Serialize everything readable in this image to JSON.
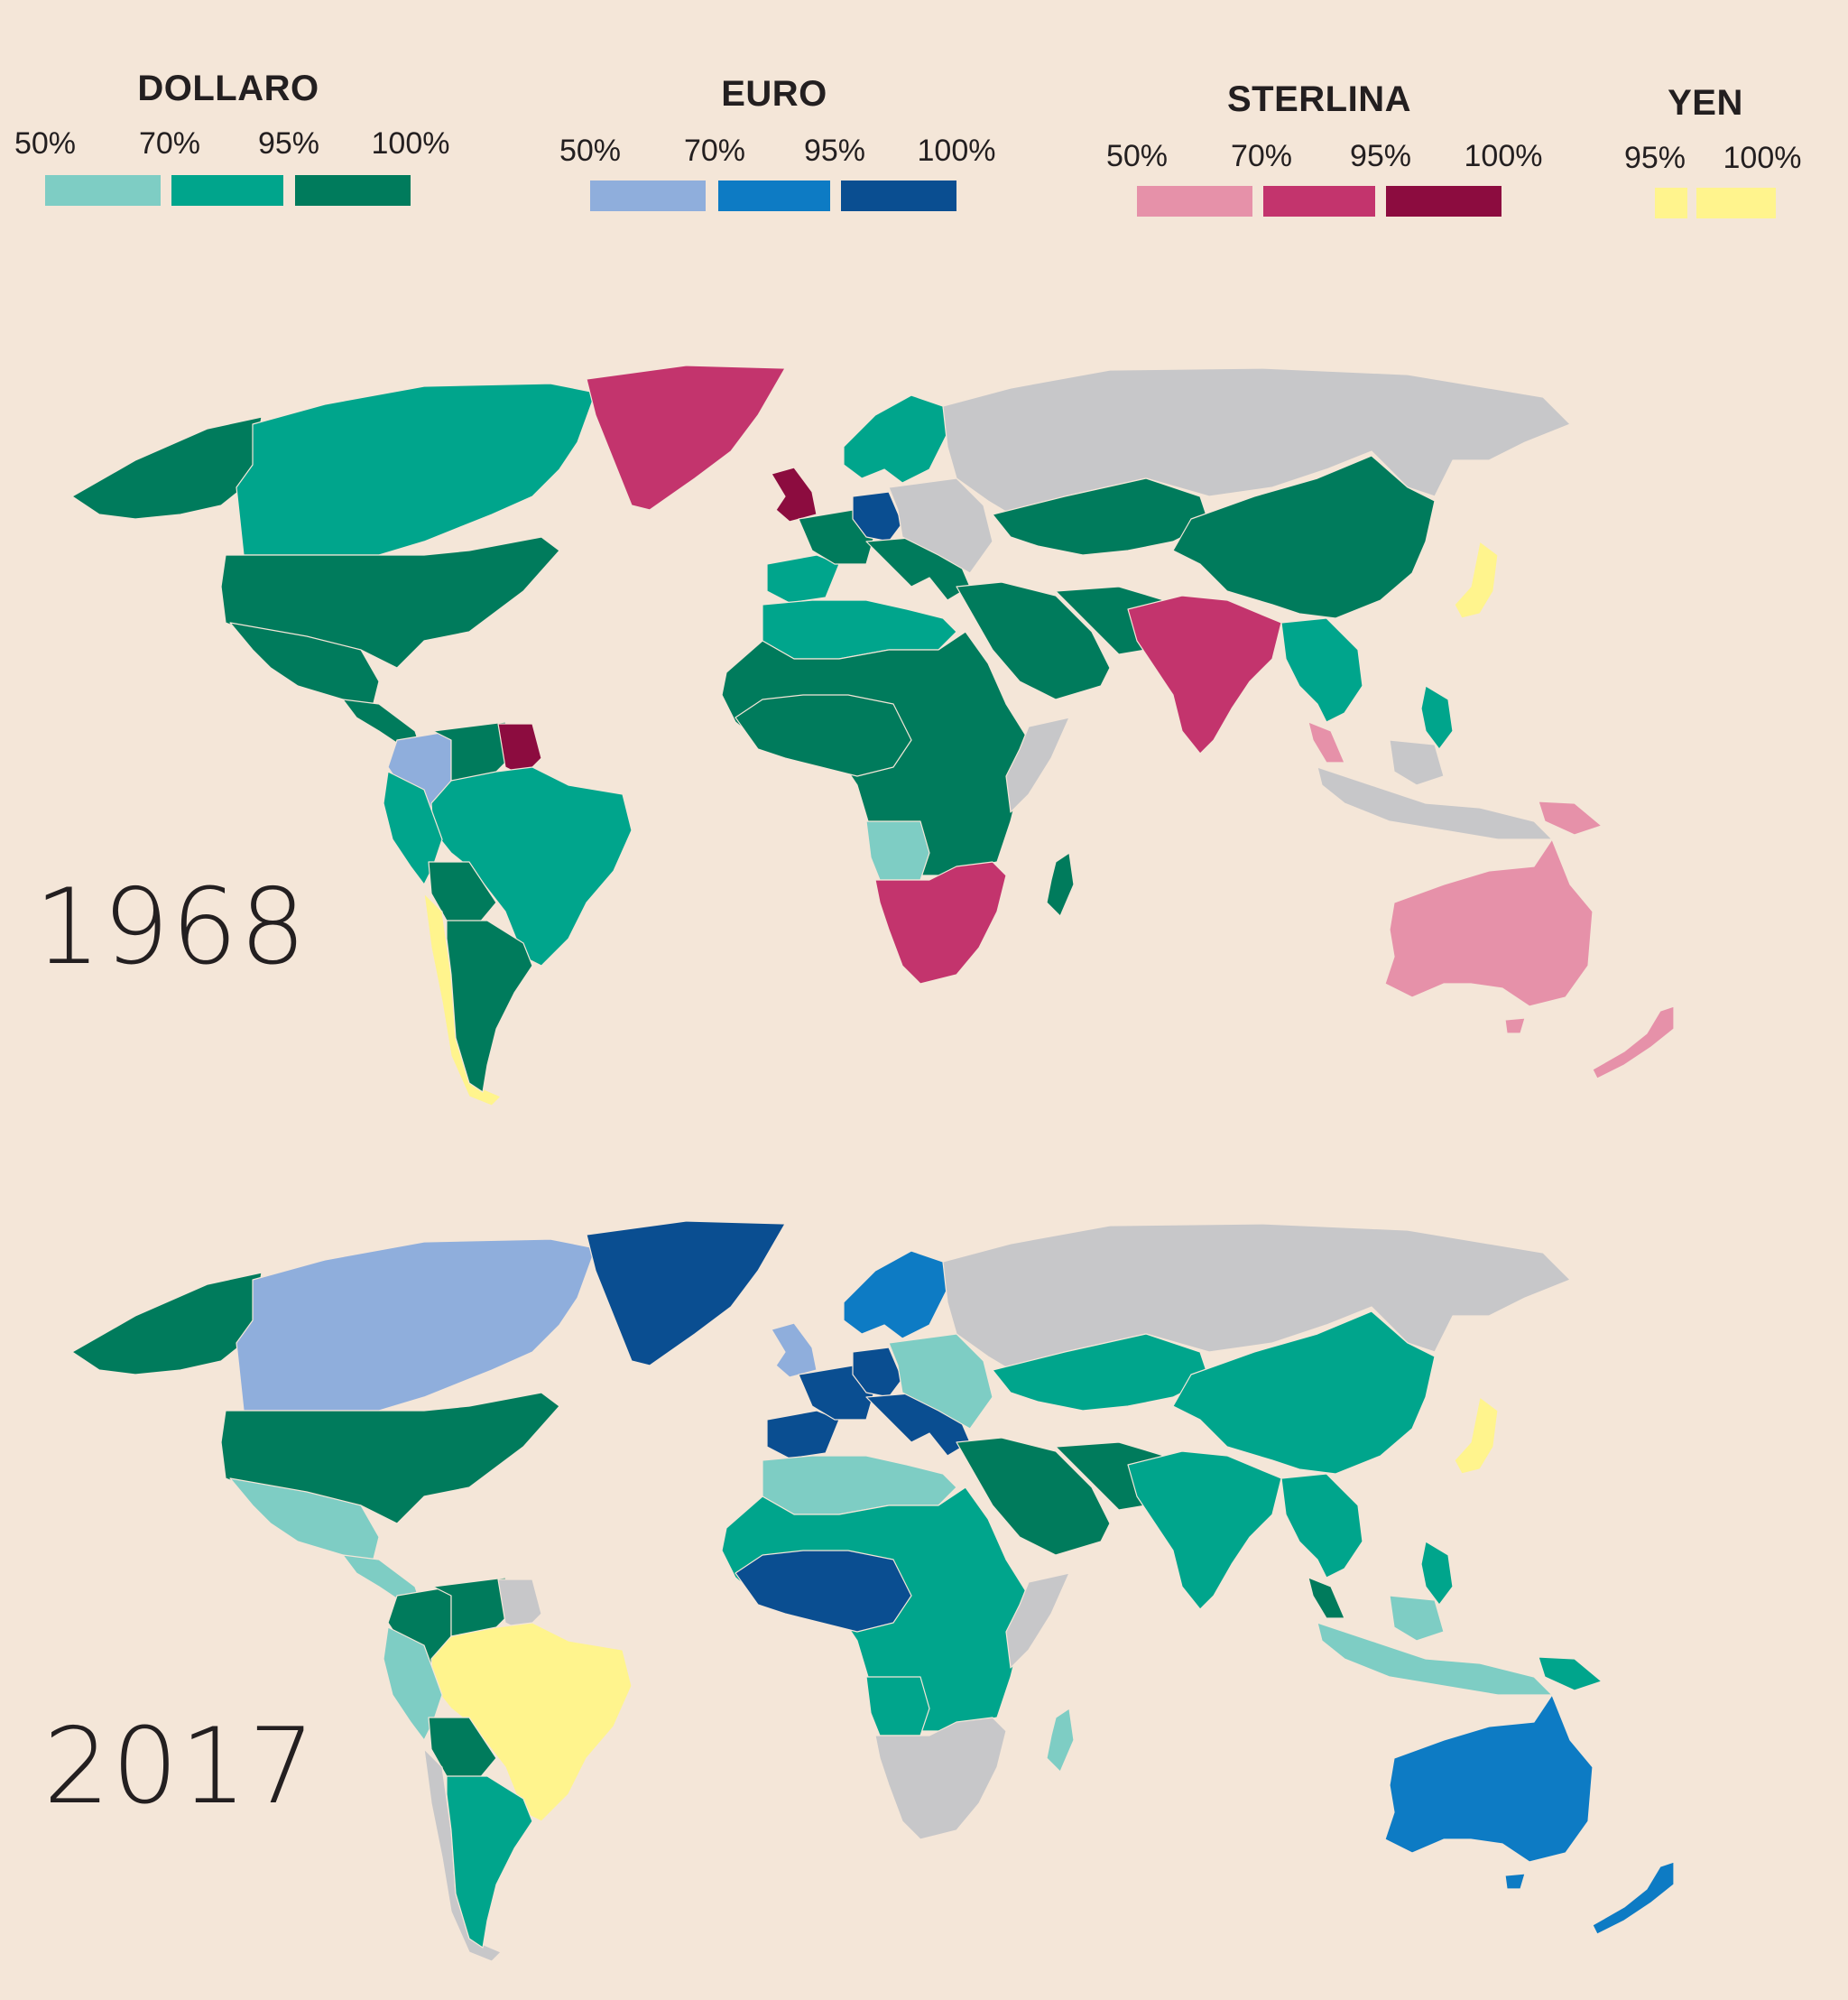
{
  "legend": {
    "groups": [
      {
        "title": "DOLLARO",
        "ticks": [
          "50%",
          "70%",
          "95%",
          "100%"
        ],
        "colors": [
          "#7ecdc4",
          "#00a58c",
          "#007b5c"
        ]
      },
      {
        "title": "EURO",
        "ticks": [
          "50%",
          "70%",
          "95%",
          "100%"
        ],
        "colors": [
          "#8faedc",
          "#0d7bc4",
          "#0a4e91"
        ]
      },
      {
        "title": "STERLINA",
        "ticks": [
          "50%",
          "70%",
          "95%",
          "100%"
        ],
        "colors": [
          "#e691a9",
          "#c3346d",
          "#8c0c3f"
        ]
      },
      {
        "title": "YEN",
        "ticks": [
          "95%",
          "100%"
        ],
        "colors": [
          "#fff48d",
          "#fff48d"
        ]
      }
    ]
  },
  "maps": [
    {
      "year": "1968",
      "regions": {
        "alaska": "#007b5c",
        "canada": "#00a58c",
        "usa": "#007b5c",
        "mexico": "#007b5c",
        "greenland": "#c3346d",
        "colombia": "#8faedc",
        "venezuela": "#007b5c",
        "guyana": "#8c0c3f",
        "brazil": "#00a58c",
        "peru": "#00a58c",
        "bolivia": "#007b5c",
        "chile": "#fff48d",
        "argentina": "#007b5c",
        "uk": "#8c0c3f",
        "iberia": "#00a58c",
        "france": "#007b5c",
        "germany": "#0a4e91",
        "scandinavia": "#00a58c",
        "russia": "#c7c7c9",
        "europe_east": "#c7c7c9",
        "north_africa": "#00a58c",
        "africa": "#007b5c",
        "angola": "#7ecdc4",
        "southern_africa": "#c3346d",
        "somalia": "#c7c7c9",
        "madagascar": "#007b5c",
        "middle_east": "#007b5c",
        "central_asia": "#007b5c",
        "china": "#007b5c",
        "india": "#c3346d",
        "southeast_asia": "#00a58c",
        "japan": "#fff48d",
        "philippines": "#00a58c",
        "indonesia": "#c7c7c9",
        "malaysia": "#e691a9",
        "png": "#e691a9",
        "australia": "#e691a9",
        "nz": "#e691a9"
      }
    },
    {
      "year": "2017",
      "regions": {
        "alaska": "#007b5c",
        "canada": "#8faedc",
        "usa": "#007b5c",
        "mexico": "#7ecdc4",
        "greenland": "#0a4e91",
        "colombia": "#007b5c",
        "venezuela": "#007b5c",
        "guyana": "#c7c7c9",
        "brazil": "#fff48d",
        "peru": "#7ecdc4",
        "bolivia": "#007b5c",
        "chile": "#c7c7c9",
        "argentina": "#00a58c",
        "uk": "#8faedc",
        "iberia": "#0a4e91",
        "france": "#0a4e91",
        "germany": "#0a4e91",
        "scandinavia": "#0d7bc4",
        "russia": "#c7c7c9",
        "europe_east": "#7ecdc4",
        "north_africa": "#7ecdc4",
        "africa": "#00a58c",
        "angola": "#00a58c",
        "southern_africa": "#c7c7c9",
        "somalia": "#c7c7c9",
        "madagascar": "#7ecdc4",
        "middle_east": "#007b5c",
        "central_asia": "#00a58c",
        "china": "#00a58c",
        "india": "#00a58c",
        "southeast_asia": "#00a58c",
        "japan": "#fff48d",
        "philippines": "#00a58c",
        "indonesia": "#7ecdc4",
        "malaysia": "#007b5c",
        "png": "#00a58c",
        "australia": "#0d7bc4",
        "nz": "#0d7bc4",
        "west_africa_euro": "#0a4e91"
      }
    }
  ]
}
